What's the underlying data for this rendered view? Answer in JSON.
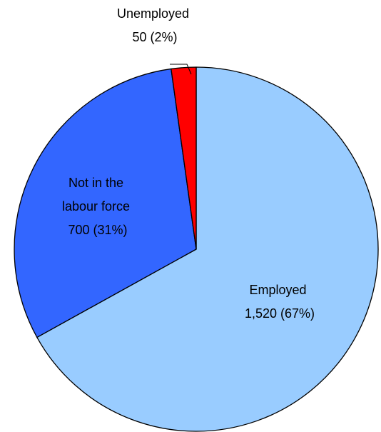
{
  "chart_data": {
    "type": "pie",
    "start_angle_deg": 0,
    "direction": "clockwise",
    "slices": [
      {
        "name": "Employed",
        "value": 1520,
        "value_label": "1,520",
        "percent_label": "67%",
        "lines": [
          "Employed",
          "1,520 (67%)"
        ],
        "color": "#99CCFF"
      },
      {
        "name": "Not in the labour force",
        "value": 700,
        "value_label": "700",
        "percent_label": "31%",
        "lines": [
          "Not in the",
          "labour force",
          "700 (31%)"
        ],
        "color": "#3366FF"
      },
      {
        "name": "Unemployed",
        "value": 50,
        "value_label": "50",
        "percent_label": "2%",
        "lines": [
          "Unemployed",
          "50 (2%)"
        ],
        "color": "#FF0000"
      }
    ]
  }
}
